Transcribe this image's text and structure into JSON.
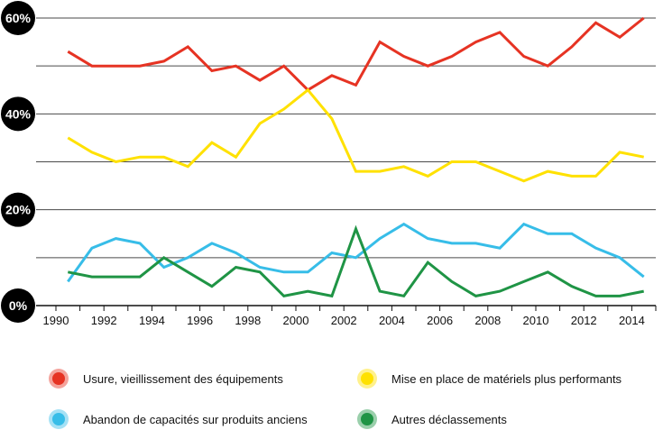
{
  "chart_data": {
    "type": "line",
    "title": "",
    "xlabel": "",
    "ylabel": "",
    "xlim": [
      1990,
      2015
    ],
    "ylim": [
      0,
      60
    ],
    "grid": true,
    "legend_position": "bottom",
    "x_ticks": [
      1990,
      1992,
      1994,
      1996,
      1998,
      2000,
      2002,
      2004,
      2006,
      2008,
      2010,
      2012,
      2014
    ],
    "x_tick_labels": [
      "1990",
      "1992",
      "1994",
      "1996",
      "1998",
      "2000",
      "2002",
      "2004",
      "2006",
      "2008",
      "2010",
      "2012",
      "2014"
    ],
    "y_gridlines": [
      10,
      20,
      30,
      40,
      50,
      60
    ],
    "y_tick_values": [
      0,
      20,
      40,
      60
    ],
    "y_tick_labels": [
      "0%",
      "20%",
      "40%",
      "60%"
    ],
    "x": [
      1990.5,
      1991.5,
      1992.5,
      1993.5,
      1994.5,
      1995.5,
      1996.5,
      1997.5,
      1998.5,
      1999.5,
      2000.5,
      2001.5,
      2002.5,
      2003.5,
      2004.5,
      2005.5,
      2006.5,
      2007.5,
      2008.5,
      2009.5,
      2010.5,
      2011.5,
      2012.5,
      2013.5,
      2014.5
    ],
    "series": [
      {
        "name": "Usure, vieillissement des équipements",
        "color": "#e63323",
        "values": [
          53,
          50,
          50,
          50,
          51,
          54,
          49,
          50,
          47,
          50,
          45,
          48,
          46,
          55,
          52,
          50,
          52,
          55,
          57,
          52,
          50,
          54,
          59,
          56,
          60
        ]
      },
      {
        "name": "Mise en place de matériels plus performants",
        "color": "#ffe100",
        "values": [
          35,
          32,
          30,
          31,
          31,
          29,
          34,
          31,
          38,
          41,
          45,
          39,
          28,
          28,
          29,
          27,
          30,
          30,
          28,
          26,
          28,
          27,
          27,
          32,
          31
        ]
      },
      {
        "name": "Abandon de capacités sur produits anciens",
        "color": "#37bde8",
        "values": [
          5,
          12,
          14,
          13,
          8,
          10,
          13,
          11,
          8,
          7,
          7,
          11,
          10,
          14,
          17,
          14,
          13,
          13,
          12,
          17,
          15,
          15,
          12,
          10,
          6
        ]
      },
      {
        "name": "Autres déclassements",
        "color": "#1f9445",
        "values": [
          7,
          6,
          6,
          6,
          10,
          7,
          4,
          8,
          7,
          2,
          3,
          2,
          16,
          3,
          2,
          9,
          5,
          2,
          3,
          5,
          7,
          4,
          2,
          2,
          3
        ]
      }
    ]
  }
}
